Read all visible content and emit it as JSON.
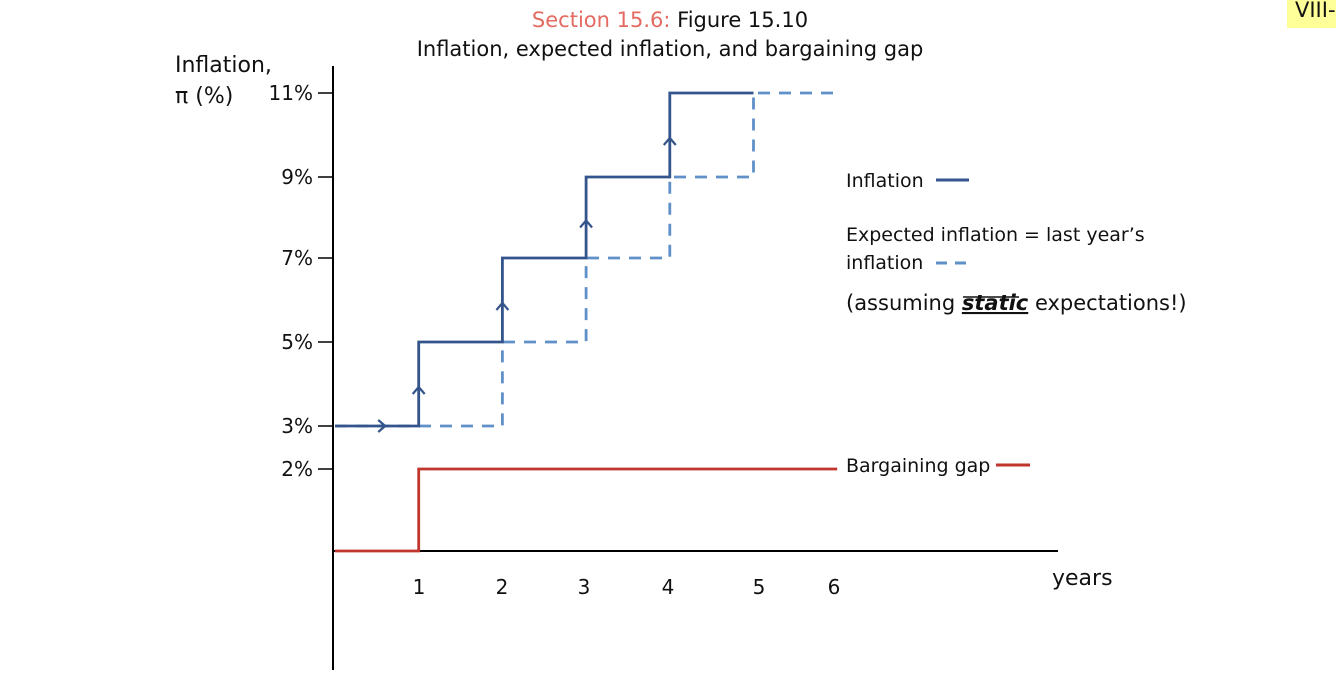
{
  "header": {
    "section": "Section 15.6:",
    "figure": "Figure 15.10",
    "subtitle": "Inflation, expected inflation, and bargaining gap"
  },
  "page_badge": "VIII-",
  "colors": {
    "inflation": "#34558c",
    "expected": "#6090c8",
    "gap": "#c0352e",
    "section_title": "#e46b61",
    "badge": "#ffff99"
  },
  "chart_data": {
    "type": "line",
    "title": "Inflation, expected inflation, and bargaining gap",
    "ylabel_lines": [
      "Inflation,",
      "π (%)"
    ],
    "xlabel": "years",
    "x_ticks": [
      1,
      2,
      3,
      4,
      5,
      6
    ],
    "y_ticks": [
      {
        "value": 2,
        "label": "2%"
      },
      {
        "value": 3,
        "label": "3%"
      },
      {
        "value": 5,
        "label": "5%"
      },
      {
        "value": 7,
        "label": "7%"
      },
      {
        "value": 9,
        "label": "9%"
      },
      {
        "value": 11,
        "label": "11%"
      }
    ],
    "series": [
      {
        "name": "Inflation",
        "style": "solid",
        "points": [
          [
            0,
            3
          ],
          [
            1,
            3
          ],
          [
            1,
            5
          ],
          [
            2,
            5
          ],
          [
            2,
            7
          ],
          [
            3,
            7
          ],
          [
            3,
            9
          ],
          [
            4,
            9
          ],
          [
            4,
            11
          ],
          [
            5,
            11
          ]
        ]
      },
      {
        "name": "Expected inflation = last year’s inflation",
        "style": "dashed",
        "points": [
          [
            0,
            3
          ],
          [
            2,
            3
          ],
          [
            2,
            5
          ],
          [
            3,
            5
          ],
          [
            3,
            7
          ],
          [
            4,
            7
          ],
          [
            4,
            9
          ],
          [
            5,
            9
          ],
          [
            5,
            11
          ],
          [
            6,
            11
          ]
        ]
      },
      {
        "name": "Bargaining gap",
        "style": "solid",
        "points": [
          [
            0,
            0
          ],
          [
            1,
            0
          ],
          [
            1,
            2
          ],
          [
            6,
            2
          ]
        ]
      }
    ],
    "legend": {
      "inflation": "Inflation",
      "expected_line1": "Expected inflation = last year’s",
      "expected_line2": "inflation",
      "note_prefix": "(assuming ",
      "note_emph": "static",
      "note_suffix": " expectations!)",
      "gap": "Bargaining gap"
    }
  }
}
